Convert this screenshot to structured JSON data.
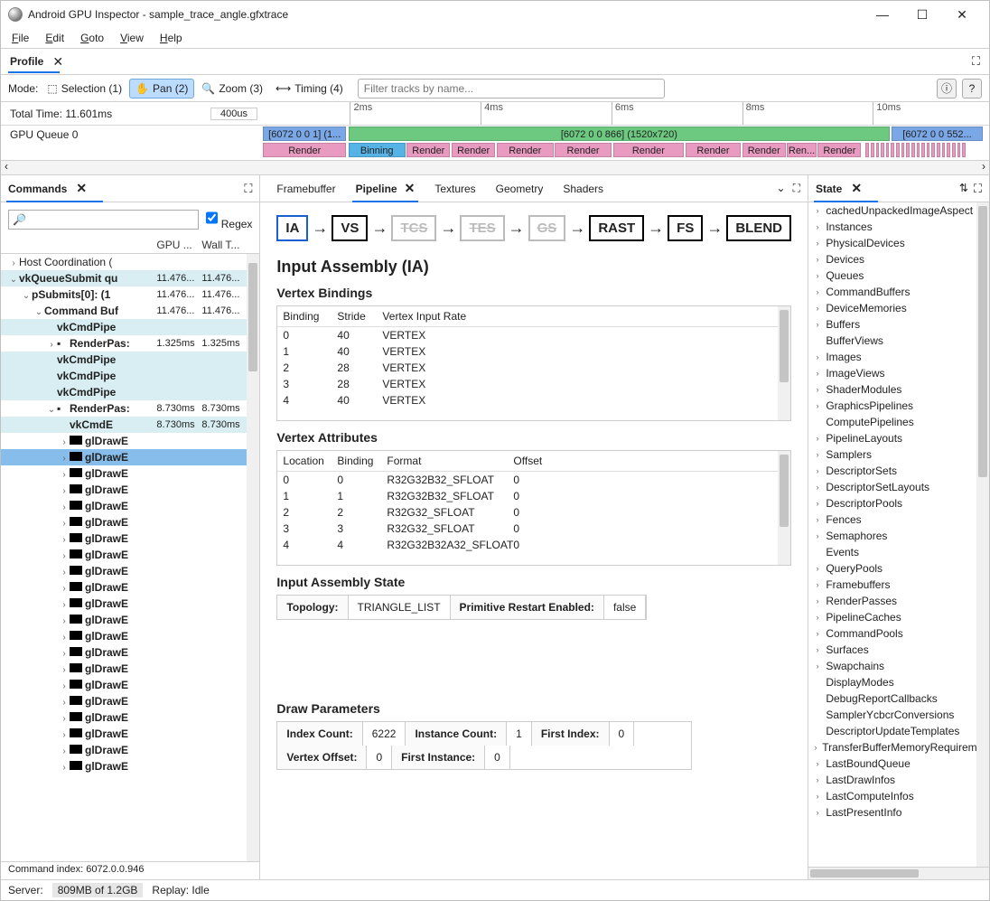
{
  "window": {
    "title": "Android GPU Inspector - sample_trace_angle.gfxtrace"
  },
  "menu": [
    "File",
    "Edit",
    "Goto",
    "View",
    "Help"
  ],
  "profile_tab": "Profile",
  "mode": {
    "label": "Mode:",
    "items": [
      {
        "label": "Selection (1)",
        "icon": "⬚"
      },
      {
        "label": "Pan (2)",
        "icon": "✋",
        "active": true
      },
      {
        "label": "Zoom (3)",
        "icon": "🔍"
      },
      {
        "label": "Timing (4)",
        "icon": "⟷"
      }
    ],
    "filter_placeholder": "Filter tracks by name..."
  },
  "timeline": {
    "total_label": "Total Time: 11.601ms",
    "scale_box": "400us",
    "ticks": [
      {
        "pos": 0.12,
        "label": "2ms"
      },
      {
        "pos": 0.3,
        "label": "4ms"
      },
      {
        "pos": 0.48,
        "label": "6ms"
      },
      {
        "pos": 0.66,
        "label": "8ms"
      },
      {
        "pos": 0.84,
        "label": "10ms"
      }
    ],
    "queue_label": "GPU Queue 0",
    "bars_top": [
      {
        "l": 0.0,
        "w": 0.115,
        "color": "#7aa7e6",
        "text": "[6072 0 0 1] (1..."
      },
      {
        "l": 0.118,
        "w": 0.745,
        "color": "#6cc97f",
        "text": "[6072 0 0 866] (1520x720)"
      },
      {
        "l": 0.866,
        "w": 0.125,
        "color": "#7aa7e6",
        "text": "[6072 0 0 552..."
      }
    ],
    "bars_bot": [
      {
        "l": 0.0,
        "w": 0.115,
        "color": "#e89ac0",
        "text": "Render"
      },
      {
        "l": 0.118,
        "w": 0.078,
        "color": "#56b3e6",
        "text": "Binning"
      },
      {
        "l": 0.198,
        "w": 0.06,
        "color": "#e89ac0",
        "text": "Render"
      },
      {
        "l": 0.26,
        "w": 0.06,
        "color": "#e89ac0",
        "text": "Render"
      },
      {
        "l": 0.322,
        "w": 0.078,
        "color": "#e89ac0",
        "text": "Render"
      },
      {
        "l": 0.402,
        "w": 0.078,
        "color": "#e89ac0",
        "text": "Render"
      },
      {
        "l": 0.482,
        "w": 0.098,
        "color": "#e89ac0",
        "text": "Render"
      },
      {
        "l": 0.582,
        "w": 0.076,
        "color": "#e89ac0",
        "text": "Render"
      },
      {
        "l": 0.66,
        "w": 0.06,
        "color": "#e89ac0",
        "text": "Render"
      },
      {
        "l": 0.722,
        "w": 0.04,
        "color": "#e89ac0",
        "text": "Ren..."
      },
      {
        "l": 0.764,
        "w": 0.06,
        "color": "#e89ac0",
        "text": "Render"
      }
    ]
  },
  "commands": {
    "title": "Commands",
    "regex": "Regex",
    "cols": [
      "",
      "GPU ...",
      "Wall T..."
    ],
    "rows": [
      {
        "depth": 0,
        "chev": "›",
        "hl": 0,
        "name": "Host Coordination (",
        "g": "",
        "w": ""
      },
      {
        "depth": 0,
        "chev": "⌄",
        "hl": 1,
        "name": "vkQueueSubmit qu",
        "g": "11.476...",
        "w": "11.476..."
      },
      {
        "depth": 1,
        "chev": "⌄",
        "hl": 0,
        "name": "pSubmits[0]: (1",
        "g": "11.476...",
        "w": "11.476..."
      },
      {
        "depth": 2,
        "chev": "⌄",
        "hl": 0,
        "name": "Command Buf",
        "g": "11.476...",
        "w": "11.476..."
      },
      {
        "depth": 3,
        "chev": "",
        "hl": 1,
        "name": "vkCmdPipe",
        "g": "",
        "w": ""
      },
      {
        "depth": 3,
        "chev": "›",
        "hl": 0,
        "name": "RenderPas:",
        "g": "1.325ms",
        "w": "1.325ms",
        "icon": "rp"
      },
      {
        "depth": 3,
        "chev": "",
        "hl": 1,
        "name": "vkCmdPipe",
        "g": "",
        "w": ""
      },
      {
        "depth": 3,
        "chev": "",
        "hl": 1,
        "name": "vkCmdPipe",
        "g": "",
        "w": ""
      },
      {
        "depth": 3,
        "chev": "",
        "hl": 1,
        "name": "vkCmdPipe",
        "g": "",
        "w": ""
      },
      {
        "depth": 3,
        "chev": "⌄",
        "hl": 0,
        "name": "RenderPas:",
        "g": "8.730ms",
        "w": "8.730ms",
        "icon": "rp2"
      },
      {
        "depth": 4,
        "chev": "",
        "hl": 1,
        "name": "vkCmdE",
        "g": "8.730ms",
        "w": "8.730ms"
      },
      {
        "depth": 4,
        "chev": "›",
        "hl": 0,
        "blk": 1,
        "name": "glDrawE",
        "g": "",
        "w": ""
      },
      {
        "depth": 4,
        "chev": "›",
        "hl": 0,
        "blk": 1,
        "sel": 1,
        "name": "glDrawE",
        "g": "",
        "w": ""
      },
      {
        "depth": 4,
        "chev": "›",
        "hl": 0,
        "blk": 1,
        "name": "glDrawE",
        "g": "",
        "w": ""
      },
      {
        "depth": 4,
        "chev": "›",
        "hl": 0,
        "blk": 1,
        "name": "glDrawE",
        "g": "",
        "w": ""
      },
      {
        "depth": 4,
        "chev": "›",
        "hl": 0,
        "blk": 1,
        "name": "glDrawE",
        "g": "",
        "w": ""
      },
      {
        "depth": 4,
        "chev": "›",
        "hl": 0,
        "blk": 1,
        "name": "glDrawE",
        "g": "",
        "w": ""
      },
      {
        "depth": 4,
        "chev": "›",
        "hl": 0,
        "blk": 1,
        "name": "glDrawE",
        "g": "",
        "w": ""
      },
      {
        "depth": 4,
        "chev": "›",
        "hl": 0,
        "blk": 1,
        "name": "glDrawE",
        "g": "",
        "w": ""
      },
      {
        "depth": 4,
        "chev": "›",
        "hl": 0,
        "blk": 1,
        "name": "glDrawE",
        "g": "",
        "w": ""
      },
      {
        "depth": 4,
        "chev": "›",
        "hl": 0,
        "blk": 1,
        "name": "glDrawE",
        "g": "",
        "w": ""
      },
      {
        "depth": 4,
        "chev": "›",
        "hl": 0,
        "blk": 1,
        "name": "glDrawE",
        "g": "",
        "w": ""
      },
      {
        "depth": 4,
        "chev": "›",
        "hl": 0,
        "blk": 1,
        "name": "glDrawE",
        "g": "",
        "w": ""
      },
      {
        "depth": 4,
        "chev": "›",
        "hl": 0,
        "blk": 1,
        "name": "glDrawE",
        "g": "",
        "w": ""
      },
      {
        "depth": 4,
        "chev": "›",
        "hl": 0,
        "blk": 1,
        "name": "glDrawE",
        "g": "",
        "w": ""
      },
      {
        "depth": 4,
        "chev": "›",
        "hl": 0,
        "blk": 1,
        "name": "glDrawE",
        "g": "",
        "w": ""
      },
      {
        "depth": 4,
        "chev": "›",
        "hl": 0,
        "blk": 1,
        "name": "glDrawE",
        "g": "",
        "w": ""
      },
      {
        "depth": 4,
        "chev": "›",
        "hl": 0,
        "blk": 1,
        "name": "glDrawE",
        "g": "",
        "w": ""
      },
      {
        "depth": 4,
        "chev": "›",
        "hl": 0,
        "blk": 1,
        "name": "glDrawE",
        "g": "",
        "w": ""
      },
      {
        "depth": 4,
        "chev": "›",
        "hl": 0,
        "blk": 1,
        "name": "glDrawE",
        "g": "",
        "w": ""
      },
      {
        "depth": 4,
        "chev": "›",
        "hl": 0,
        "blk": 1,
        "name": "glDrawE",
        "g": "",
        "w": ""
      },
      {
        "depth": 4,
        "chev": "›",
        "hl": 0,
        "blk": 1,
        "name": "glDrawE",
        "g": "",
        "w": ""
      }
    ],
    "status": "Command index: 6072.0.0.946"
  },
  "center_tabs": [
    "Framebuffer",
    "Pipeline",
    "Textures",
    "Geometry",
    "Shaders"
  ],
  "center_active": 1,
  "pipeline": {
    "stages": [
      {
        "label": "IA",
        "sel": true
      },
      {
        "label": "VS"
      },
      {
        "label": "TCS",
        "dim": true
      },
      {
        "label": "TES",
        "dim": true
      },
      {
        "label": "GS",
        "dim": true
      },
      {
        "label": "RAST"
      },
      {
        "label": "FS"
      },
      {
        "label": "BLEND"
      }
    ],
    "title": "Input Assembly (IA)",
    "vb_title": "Vertex Bindings",
    "vb_cols": [
      "Binding",
      "Stride",
      "Vertex Input Rate"
    ],
    "vb_widths": [
      60,
      50,
      420
    ],
    "vb_rows": [
      [
        "0",
        "40",
        "VERTEX"
      ],
      [
        "1",
        "40",
        "VERTEX"
      ],
      [
        "2",
        "28",
        "VERTEX"
      ],
      [
        "3",
        "28",
        "VERTEX"
      ],
      [
        "4",
        "40",
        "VERTEX"
      ]
    ],
    "va_title": "Vertex Attributes",
    "va_cols": [
      "Location",
      "Binding",
      "Format",
      "Offset"
    ],
    "va_widths": [
      60,
      55,
      140,
      260
    ],
    "va_rows": [
      [
        "0",
        "0",
        "R32G32B32_SFLOAT",
        "0"
      ],
      [
        "1",
        "1",
        "R32G32B32_SFLOAT",
        "0"
      ],
      [
        "2",
        "2",
        "R32G32_SFLOAT",
        "0"
      ],
      [
        "3",
        "3",
        "R32G32_SFLOAT",
        "0"
      ],
      [
        "4",
        "4",
        "R32G32B32A32_SFLOAT",
        "0"
      ]
    ],
    "ias_title": "Input Assembly State",
    "ias": [
      [
        "Topology:",
        "TRIANGLE_LIST"
      ],
      [
        "Primitive Restart Enabled:",
        "false"
      ]
    ],
    "dp_title": "Draw Parameters",
    "dp": [
      [
        "Index Count:",
        "6222"
      ],
      [
        "Instance Count:",
        "1"
      ],
      [
        "First Index:",
        "0"
      ],
      [
        "Vertex Offset:",
        "0"
      ],
      [
        "First Instance:",
        "0"
      ]
    ]
  },
  "state": {
    "title": "State",
    "items": [
      {
        "c": "›",
        "t": "cachedUnpackedImageAspect"
      },
      {
        "c": "›",
        "t": "Instances"
      },
      {
        "c": "›",
        "t": "PhysicalDevices"
      },
      {
        "c": "›",
        "t": "Devices"
      },
      {
        "c": "›",
        "t": "Queues"
      },
      {
        "c": "›",
        "t": "CommandBuffers"
      },
      {
        "c": "›",
        "t": "DeviceMemories"
      },
      {
        "c": "›",
        "t": "Buffers"
      },
      {
        "c": "",
        "t": "BufferViews"
      },
      {
        "c": "›",
        "t": "Images"
      },
      {
        "c": "›",
        "t": "ImageViews"
      },
      {
        "c": "›",
        "t": "ShaderModules"
      },
      {
        "c": "›",
        "t": "GraphicsPipelines"
      },
      {
        "c": "",
        "t": "ComputePipelines"
      },
      {
        "c": "›",
        "t": "PipelineLayouts"
      },
      {
        "c": "›",
        "t": "Samplers"
      },
      {
        "c": "›",
        "t": "DescriptorSets"
      },
      {
        "c": "›",
        "t": "DescriptorSetLayouts"
      },
      {
        "c": "›",
        "t": "DescriptorPools"
      },
      {
        "c": "›",
        "t": "Fences"
      },
      {
        "c": "›",
        "t": "Semaphores"
      },
      {
        "c": "",
        "t": "Events"
      },
      {
        "c": "›",
        "t": "QueryPools"
      },
      {
        "c": "›",
        "t": "Framebuffers"
      },
      {
        "c": "›",
        "t": "RenderPasses"
      },
      {
        "c": "›",
        "t": "PipelineCaches"
      },
      {
        "c": "›",
        "t": "CommandPools"
      },
      {
        "c": "›",
        "t": "Surfaces"
      },
      {
        "c": "›",
        "t": "Swapchains"
      },
      {
        "c": "",
        "t": "DisplayModes"
      },
      {
        "c": "",
        "t": "DebugReportCallbacks"
      },
      {
        "c": "",
        "t": "SamplerYcbcrConversions"
      },
      {
        "c": "",
        "t": "DescriptorUpdateTemplates"
      },
      {
        "c": "›",
        "t": "TransferBufferMemoryRequiremen"
      },
      {
        "c": "›",
        "t": "LastBoundQueue"
      },
      {
        "c": "›",
        "t": "LastDrawInfos"
      },
      {
        "c": "›",
        "t": "LastComputeInfos"
      },
      {
        "c": "›",
        "t": "LastPresentInfo"
      }
    ]
  },
  "status": {
    "server": "Server:",
    "mem": "809MB of 1.2GB",
    "replay": "Replay: Idle"
  }
}
